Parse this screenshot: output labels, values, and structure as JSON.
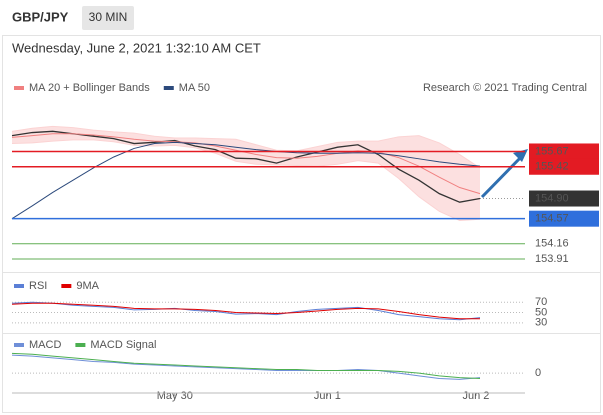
{
  "header": {
    "symbol": "GBP/JPY",
    "interval": "30 MIN",
    "timestamp": "Wednesday, June 2, 2021 1:32:10 AM CET"
  },
  "chart_data": [
    {
      "type": "line",
      "credit": "Research © 2021 Trading Central",
      "xlim": [
        0,
        23
      ],
      "ylim": [
        153.73,
        156.84
      ],
      "color": "#333333",
      "values": [
        155.93,
        155.98,
        156.0,
        155.96,
        155.92,
        155.88,
        155.8,
        155.82,
        155.85,
        155.76,
        155.7,
        155.56,
        155.55,
        155.48,
        155.58,
        155.66,
        155.74,
        155.78,
        155.62,
        155.38,
        155.2,
        154.98,
        154.84,
        154.9
      ],
      "series": [
        {
          "name": "MA 20 + Bollinger Bands",
          "color": "#f08080",
          "band_color": "#fbd3d3",
          "values": [
            155.9,
            155.93,
            155.96,
            155.96,
            155.94,
            155.91,
            155.87,
            155.84,
            155.83,
            155.81,
            155.76,
            155.69,
            155.62,
            155.57,
            155.56,
            155.59,
            155.64,
            155.68,
            155.66,
            155.57,
            155.43,
            155.25,
            155.08,
            154.98
          ],
          "upper": [
            156.0,
            156.05,
            156.08,
            156.06,
            156.02,
            155.99,
            155.97,
            155.92,
            155.89,
            155.89,
            155.88,
            155.87,
            155.78,
            155.69,
            155.68,
            155.75,
            155.82,
            155.84,
            155.84,
            155.91,
            155.93,
            155.81,
            155.62,
            155.4
          ],
          "lower": [
            155.8,
            155.81,
            155.84,
            155.86,
            155.86,
            155.83,
            155.77,
            155.76,
            155.77,
            155.73,
            155.64,
            155.51,
            155.46,
            155.45,
            155.44,
            155.43,
            155.46,
            155.52,
            155.48,
            155.23,
            154.93,
            154.69,
            154.54,
            154.56
          ]
        },
        {
          "name": "MA 50",
          "color": "#2c4a7c",
          "values": [
            154.57,
            154.78,
            155.0,
            155.2,
            155.4,
            155.58,
            155.72,
            155.8,
            155.82,
            155.8,
            155.78,
            155.74,
            155.7,
            155.67,
            155.65,
            155.64,
            155.64,
            155.65,
            155.64,
            155.6,
            155.55,
            155.5,
            155.46,
            155.43
          ]
        }
      ],
      "levels": [
        {
          "value": 155.67,
          "color": "#e31b23",
          "box": true
        },
        {
          "value": 155.42,
          "color": "#e31b23",
          "box": true
        },
        {
          "value": 154.9,
          "label": "154.90",
          "color": "#333333",
          "line_color": "#999999",
          "dotted": true,
          "box": true
        },
        {
          "value": 154.57,
          "color": "#2f6fdc",
          "box": true
        },
        {
          "value": 154.16,
          "color": "#3a9a2a",
          "box": false
        },
        {
          "value": 153.91,
          "color": "#3a9a2a",
          "box": false
        }
      ]
    },
    {
      "type": "line",
      "xlim": [
        0,
        23
      ],
      "ylim": [
        20,
        82
      ],
      "yticks": [
        30,
        50,
        70
      ],
      "series": [
        {
          "name": "RSI",
          "color": "#5b7fd6",
          "values": [
            68,
            70,
            68,
            64,
            62,
            60,
            55,
            56,
            58,
            54,
            52,
            47,
            48,
            46,
            52,
            56,
            58,
            60,
            54,
            46,
            42,
            38,
            36,
            40
          ]
        },
        {
          "name": "9MA",
          "color": "#e00000",
          "values": [
            66,
            68,
            68,
            66,
            64,
            62,
            58,
            57,
            57,
            56,
            54,
            50,
            49,
            48,
            50,
            53,
            56,
            58,
            57,
            52,
            46,
            41,
            38,
            38
          ]
        }
      ]
    },
    {
      "type": "line",
      "xlim": [
        0,
        23
      ],
      "ylim": [
        -0.21,
        0.28
      ],
      "yticks": [
        0
      ],
      "xticks": [
        {
          "value": 8,
          "label": "May 30"
        },
        {
          "value": 15.5,
          "label": "Jun 1"
        },
        {
          "value": 22.8,
          "label": "Jun 2"
        }
      ],
      "series": [
        {
          "name": "MACD",
          "color": "#6f8fd8",
          "values": [
            0.2,
            0.19,
            0.17,
            0.15,
            0.13,
            0.12,
            0.1,
            0.09,
            0.08,
            0.07,
            0.06,
            0.05,
            0.04,
            0.03,
            0.03,
            0.03,
            0.03,
            0.04,
            0.03,
            0.0,
            -0.03,
            -0.06,
            -0.07,
            -0.05
          ]
        },
        {
          "name": "MACD Signal",
          "color": "#4caf50",
          "values": [
            0.22,
            0.21,
            0.19,
            0.17,
            0.15,
            0.13,
            0.11,
            0.1,
            0.09,
            0.08,
            0.07,
            0.06,
            0.05,
            0.04,
            0.04,
            0.03,
            0.03,
            0.03,
            0.03,
            0.02,
            0.0,
            -0.03,
            -0.05,
            -0.06
          ]
        }
      ]
    }
  ]
}
